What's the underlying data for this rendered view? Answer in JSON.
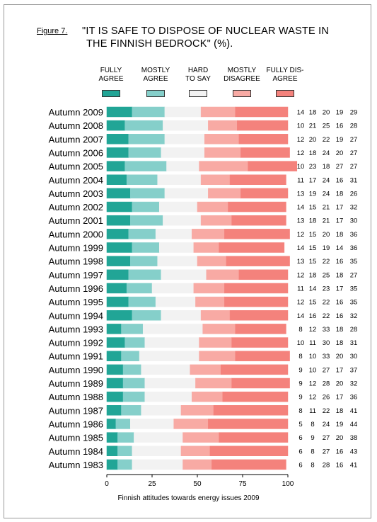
{
  "figure": {
    "label": "Figure 7.",
    "title_line1": "\"IT IS SAFE TO DISPOSE OF NUCLEAR WASTE IN",
    "title_line2": "THE FINNISH BEDROCK\" (%).",
    "footer": "Finnish attitudes towards energy issues 2009"
  },
  "legend": [
    {
      "line1": "FULLY",
      "line2": "AGREE",
      "color": "#21a596"
    },
    {
      "line1": "MOSTLY",
      "line2": "AGREE",
      "color": "#85cfca"
    },
    {
      "line1": "HARD",
      "line2": "TO SAY",
      "color": "#f2f2f2"
    },
    {
      "line1": "MOSTLY",
      "line2": "DISAGREE",
      "color": "#f8aaa4"
    },
    {
      "line1": "FULLY DIS-",
      "line2": "AGREE",
      "color": "#f4827c"
    }
  ],
  "chart_data": {
    "type": "bar",
    "orientation": "horizontal",
    "stacked": true,
    "xlim": [
      0,
      100
    ],
    "xticks": [
      0,
      25,
      50,
      75,
      100
    ],
    "categories": [
      "Autumn 2009",
      "Autumn 2008",
      "Autumn 2007",
      "Autumn 2006",
      "Autumn 2005",
      "Autumn 2004",
      "Autumn 2003",
      "Autumn 2002",
      "Autumn 2001",
      "Autumn 2000",
      "Autumn 1999",
      "Autumn 1998",
      "Autumn 1997",
      "Autumn 1996",
      "Autumn 1995",
      "Autumn 1994",
      "Autumn 1993",
      "Autumn 1992",
      "Autumn 1991",
      "Autumn 1990",
      "Autumn 1989",
      "Autumn 1988",
      "Autumn 1987",
      "Autumn 1986",
      "Autumn 1985",
      "Autumn 1984",
      "Autumn 1983"
    ],
    "series": [
      {
        "name": "FULLY AGREE",
        "color": "#21a596",
        "values": [
          14,
          10,
          12,
          12,
          10,
          11,
          13,
          14,
          13,
          12,
          14,
          13,
          12,
          11,
          12,
          14,
          8,
          10,
          8,
          9,
          9,
          9,
          8,
          5,
          6,
          6,
          6
        ]
      },
      {
        "name": "MOSTLY AGREE",
        "color": "#85cfca",
        "values": [
          18,
          21,
          20,
          18,
          23,
          17,
          19,
          15,
          18,
          15,
          15,
          15,
          18,
          14,
          15,
          16,
          12,
          11,
          10,
          10,
          12,
          12,
          11,
          8,
          9,
          8,
          8
        ]
      },
      {
        "name": "HARD TO SAY",
        "color": "#f2f2f2",
        "values": [
          20,
          25,
          22,
          24,
          18,
          24,
          24,
          21,
          21,
          20,
          19,
          22,
          25,
          23,
          22,
          22,
          33,
          30,
          33,
          27,
          28,
          26,
          22,
          24,
          27,
          27,
          28
        ]
      },
      {
        "name": "MOSTLY DISAGREE",
        "color": "#f8aaa4",
        "values": [
          19,
          16,
          19,
          20,
          27,
          16,
          18,
          17,
          17,
          18,
          14,
          16,
          18,
          17,
          16,
          16,
          18,
          18,
          20,
          17,
          20,
          17,
          18,
          19,
          20,
          16,
          16
        ]
      },
      {
        "name": "FULLY DISAGREE",
        "color": "#f4827c",
        "values": [
          29,
          28,
          27,
          27,
          27,
          31,
          26,
          32,
          30,
          36,
          36,
          35,
          27,
          35,
          35,
          32,
          28,
          31,
          30,
          37,
          32,
          36,
          41,
          44,
          38,
          43,
          41
        ]
      }
    ]
  }
}
